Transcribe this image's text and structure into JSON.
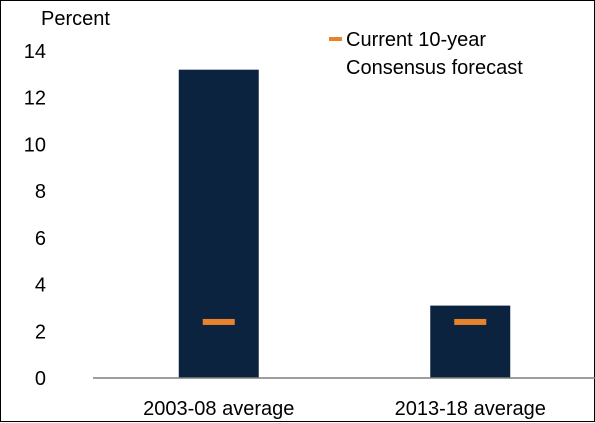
{
  "chart_data": {
    "type": "bar",
    "unit_label": "Percent",
    "categories": [
      "2003-08 average",
      "2013-18 average"
    ],
    "series": [
      {
        "values": [
          13.2,
          3.1
        ],
        "color": "#0c2340"
      },
      {
        "name": "Current 10-year Consensus forecast",
        "values": [
          2.4,
          2.4
        ],
        "color": "#e8822b",
        "marker": "dash"
      }
    ],
    "ylim": [
      0,
      14
    ],
    "yticks": [
      0,
      2,
      4,
      6,
      8,
      10,
      12,
      14
    ],
    "grid": false,
    "legend_position": "top-right",
    "legend_lines": [
      "Current 10-year",
      "Consensus forecast"
    ]
  }
}
